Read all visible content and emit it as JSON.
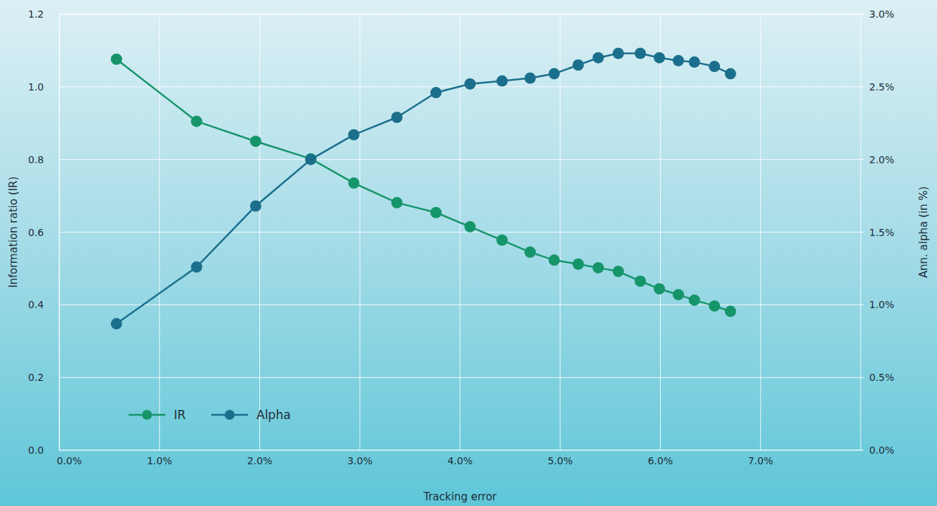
{
  "chart_data": {
    "type": "line",
    "x_label": "Tracking error",
    "y_label": "Information ratio (IR)",
    "y2_label": "Ann. alpha (in %)",
    "x": [
      0.57,
      1.37,
      1.96,
      2.51,
      2.94,
      3.37,
      3.76,
      4.1,
      4.42,
      4.7,
      4.94,
      5.18,
      5.38,
      5.58,
      5.8,
      5.99,
      6.18,
      6.34,
      6.54,
      6.7
    ],
    "series": [
      {
        "name": "IR",
        "color": "#16956a",
        "marker": "circle",
        "line_style": "solid",
        "values": [
          1.076,
          0.905,
          0.85,
          0.802,
          0.735,
          0.681,
          0.654,
          0.615,
          0.578,
          0.545,
          0.523,
          0.512,
          0.502,
          0.492,
          0.465,
          0.444,
          0.428,
          0.413,
          0.397,
          0.382
        ]
      },
      {
        "name": "Alpha",
        "color": "#1b6f8c",
        "marker": "circle",
        "line_style": "solid",
        "axis": "y2",
        "values": [
          0.87,
          1.26,
          1.68,
          2.0,
          2.17,
          2.29,
          2.46,
          2.52,
          2.54,
          2.56,
          2.59,
          2.65,
          2.7,
          2.73,
          2.73,
          2.7,
          2.68,
          2.67,
          2.64,
          2.59
        ]
      }
    ],
    "xlim": [
      0,
      8
    ],
    "xticks": [
      {
        "value": 0,
        "label": "0.0%"
      },
      {
        "value": 1,
        "label": "1.0%"
      },
      {
        "value": 2,
        "label": "2.0%"
      },
      {
        "value": 3,
        "label": "3.0%"
      },
      {
        "value": 4,
        "label": "4.0%"
      },
      {
        "value": 5,
        "label": "5.0%"
      },
      {
        "value": 6,
        "label": "6.0%"
      },
      {
        "value": 7,
        "label": "7.0%"
      }
    ],
    "ylim": [
      0,
      1.2
    ],
    "yticks": [
      {
        "value": 0,
        "label": "0.0"
      },
      0.2,
      0.4,
      0.6,
      0.8,
      {
        "value": 1,
        "label": "1.0"
      },
      1.2
    ],
    "y2lim": [
      0,
      3
    ],
    "y2ticks": [
      {
        "value": 0,
        "label": "0.0%"
      },
      {
        "value": 0.5,
        "label": "0.5%"
      },
      {
        "value": 1,
        "label": "1.0%"
      },
      {
        "value": 1.5,
        "label": "1.5%"
      },
      {
        "value": 2,
        "label": "2.0%"
      },
      {
        "value": 2.5,
        "label": "2.5%"
      },
      {
        "value": 3,
        "label": "3.0%"
      }
    ],
    "grid": true,
    "legend": "lower left"
  }
}
